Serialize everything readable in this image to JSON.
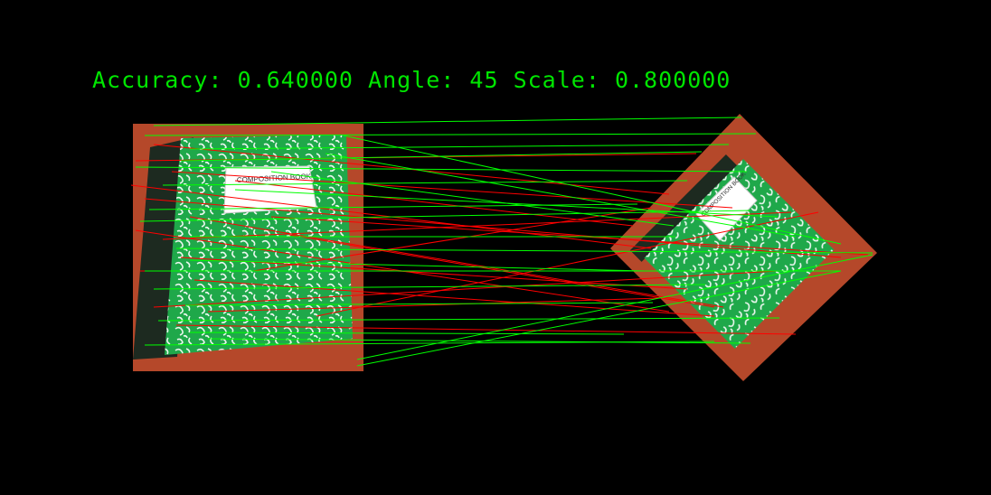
{
  "caption": {
    "accuracy_label": "Accuracy:",
    "accuracy_value": "0.640000",
    "angle_label": "Angle:",
    "angle_value": "45",
    "scale_label": "Scale:",
    "scale_value": "0.800000"
  },
  "book": {
    "cover_title": "COMPOSITION BOOK"
  },
  "colors": {
    "background": "#000000",
    "inlier": "#00ff00",
    "outlier": "#ff0000",
    "table": "#b5482a",
    "cover": "#1fa84a",
    "binding": "#1d2a20"
  },
  "matches_count": {
    "inlier": 24,
    "outlier": 19
  }
}
